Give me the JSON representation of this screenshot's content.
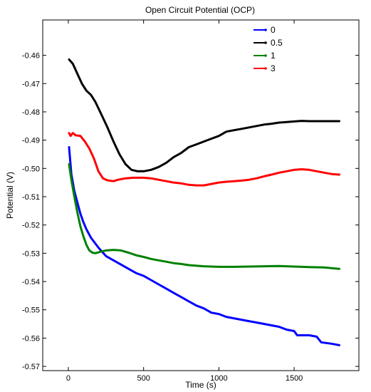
{
  "chart_data": {
    "type": "line",
    "title": "Open Circuit Potential (OCP)",
    "xlabel": "Time (s)",
    "ylabel": "Potential (V)",
    "xlim": [
      -170,
      1930
    ],
    "ylim": [
      -0.5715,
      -0.4475
    ],
    "x_ticks": [
      0,
      500,
      1000,
      1500
    ],
    "x_tick_labels": [
      "0",
      "500",
      "1000",
      "1500"
    ],
    "y_ticks": [
      -0.57,
      -0.56,
      -0.55,
      -0.54,
      -0.53,
      -0.52,
      -0.51,
      -0.5,
      -0.49,
      -0.48,
      -0.47,
      -0.46
    ],
    "y_tick_labels": [
      "-0.57",
      "-0.56",
      "-0.55",
      "-0.54",
      "-0.53",
      "-0.52",
      "-0.51",
      "-0.50",
      "-0.49",
      "-0.48",
      "-0.47",
      "-0.46"
    ],
    "grid": false,
    "legend_position": "top-right",
    "series": [
      {
        "name": "0",
        "color": "#0000ff",
        "points": [
          [
            5,
            -0.4925
          ],
          [
            20,
            -0.502
          ],
          [
            40,
            -0.508
          ],
          [
            60,
            -0.512
          ],
          [
            80,
            -0.516
          ],
          [
            100,
            -0.519
          ],
          [
            120,
            -0.5215
          ],
          [
            150,
            -0.5245
          ],
          [
            200,
            -0.528
          ],
          [
            250,
            -0.531
          ],
          [
            300,
            -0.5325
          ],
          [
            350,
            -0.534
          ],
          [
            400,
            -0.5355
          ],
          [
            450,
            -0.537
          ],
          [
            500,
            -0.538
          ],
          [
            550,
            -0.5395
          ],
          [
            600,
            -0.541
          ],
          [
            650,
            -0.5425
          ],
          [
            700,
            -0.544
          ],
          [
            750,
            -0.5455
          ],
          [
            800,
            -0.547
          ],
          [
            850,
            -0.5485
          ],
          [
            900,
            -0.5495
          ],
          [
            950,
            -0.551
          ],
          [
            1000,
            -0.5515
          ],
          [
            1050,
            -0.5525
          ],
          [
            1100,
            -0.553
          ],
          [
            1150,
            -0.5535
          ],
          [
            1200,
            -0.554
          ],
          [
            1250,
            -0.5545
          ],
          [
            1300,
            -0.555
          ],
          [
            1350,
            -0.5555
          ],
          [
            1400,
            -0.556
          ],
          [
            1450,
            -0.557
          ],
          [
            1500,
            -0.5575
          ],
          [
            1520,
            -0.559
          ],
          [
            1550,
            -0.559
          ],
          [
            1600,
            -0.559
          ],
          [
            1650,
            -0.5595
          ],
          [
            1680,
            -0.5615
          ],
          [
            1750,
            -0.562
          ],
          [
            1800,
            -0.5625
          ]
        ]
      },
      {
        "name": "0.5",
        "color": "#000000",
        "points": [
          [
            5,
            -0.4615
          ],
          [
            30,
            -0.463
          ],
          [
            60,
            -0.4665
          ],
          [
            90,
            -0.47
          ],
          [
            120,
            -0.4725
          ],
          [
            150,
            -0.474
          ],
          [
            180,
            -0.4765
          ],
          [
            220,
            -0.481
          ],
          [
            260,
            -0.4855
          ],
          [
            300,
            -0.4905
          ],
          [
            340,
            -0.495
          ],
          [
            380,
            -0.4985
          ],
          [
            420,
            -0.5005
          ],
          [
            460,
            -0.501
          ],
          [
            500,
            -0.501
          ],
          [
            550,
            -0.5005
          ],
          [
            600,
            -0.4995
          ],
          [
            650,
            -0.498
          ],
          [
            700,
            -0.496
          ],
          [
            750,
            -0.4945
          ],
          [
            800,
            -0.4925
          ],
          [
            850,
            -0.4915
          ],
          [
            900,
            -0.4905
          ],
          [
            950,
            -0.4895
          ],
          [
            1000,
            -0.4885
          ],
          [
            1050,
            -0.487
          ],
          [
            1100,
            -0.4865
          ],
          [
            1150,
            -0.486
          ],
          [
            1200,
            -0.4855
          ],
          [
            1250,
            -0.485
          ],
          [
            1300,
            -0.4845
          ],
          [
            1350,
            -0.4842
          ],
          [
            1400,
            -0.4838
          ],
          [
            1450,
            -0.4836
          ],
          [
            1500,
            -0.4834
          ],
          [
            1550,
            -0.4832
          ],
          [
            1600,
            -0.4833
          ],
          [
            1650,
            -0.4833
          ],
          [
            1700,
            -0.4833
          ],
          [
            1750,
            -0.4833
          ],
          [
            1800,
            -0.4833
          ]
        ]
      },
      {
        "name": "1",
        "color": "#008000",
        "points": [
          [
            5,
            -0.4985
          ],
          [
            20,
            -0.504
          ],
          [
            40,
            -0.51
          ],
          [
            60,
            -0.5155
          ],
          [
            80,
            -0.5205
          ],
          [
            100,
            -0.524
          ],
          [
            120,
            -0.527
          ],
          [
            140,
            -0.529
          ],
          [
            160,
            -0.5298
          ],
          [
            180,
            -0.53
          ],
          [
            210,
            -0.5295
          ],
          [
            250,
            -0.529
          ],
          [
            300,
            -0.5288
          ],
          [
            350,
            -0.529
          ],
          [
            400,
            -0.5298
          ],
          [
            450,
            -0.5307
          ],
          [
            500,
            -0.5313
          ],
          [
            550,
            -0.532
          ],
          [
            600,
            -0.5325
          ],
          [
            650,
            -0.533
          ],
          [
            700,
            -0.5335
          ],
          [
            750,
            -0.5338
          ],
          [
            800,
            -0.5342
          ],
          [
            900,
            -0.5346
          ],
          [
            1000,
            -0.5348
          ],
          [
            1100,
            -0.5348
          ],
          [
            1200,
            -0.5347
          ],
          [
            1300,
            -0.5346
          ],
          [
            1400,
            -0.5345
          ],
          [
            1500,
            -0.5347
          ],
          [
            1600,
            -0.5349
          ],
          [
            1700,
            -0.535
          ],
          [
            1800,
            -0.5355
          ]
        ]
      },
      {
        "name": "3",
        "color": "#ff0000",
        "points": [
          [
            5,
            -0.4875
          ],
          [
            15,
            -0.4885
          ],
          [
            30,
            -0.4875
          ],
          [
            50,
            -0.4883
          ],
          [
            80,
            -0.4885
          ],
          [
            110,
            -0.4905
          ],
          [
            140,
            -0.493
          ],
          [
            170,
            -0.4965
          ],
          [
            200,
            -0.501
          ],
          [
            230,
            -0.5035
          ],
          [
            260,
            -0.5042
          ],
          [
            300,
            -0.5045
          ],
          [
            330,
            -0.504
          ],
          [
            380,
            -0.5035
          ],
          [
            430,
            -0.5033
          ],
          [
            500,
            -0.5033
          ],
          [
            550,
            -0.5035
          ],
          [
            600,
            -0.504
          ],
          [
            650,
            -0.5045
          ],
          [
            700,
            -0.505
          ],
          [
            750,
            -0.5053
          ],
          [
            800,
            -0.5058
          ],
          [
            850,
            -0.506
          ],
          [
            900,
            -0.506
          ],
          [
            950,
            -0.5055
          ],
          [
            1000,
            -0.505
          ],
          [
            1050,
            -0.5047
          ],
          [
            1100,
            -0.5045
          ],
          [
            1150,
            -0.5043
          ],
          [
            1200,
            -0.504
          ],
          [
            1250,
            -0.5035
          ],
          [
            1300,
            -0.5028
          ],
          [
            1350,
            -0.5022
          ],
          [
            1400,
            -0.5015
          ],
          [
            1450,
            -0.501
          ],
          [
            1500,
            -0.5005
          ],
          [
            1550,
            -0.5003
          ],
          [
            1600,
            -0.5005
          ],
          [
            1650,
            -0.501
          ],
          [
            1700,
            -0.5015
          ],
          [
            1750,
            -0.502
          ],
          [
            1800,
            -0.5022
          ]
        ]
      }
    ]
  }
}
